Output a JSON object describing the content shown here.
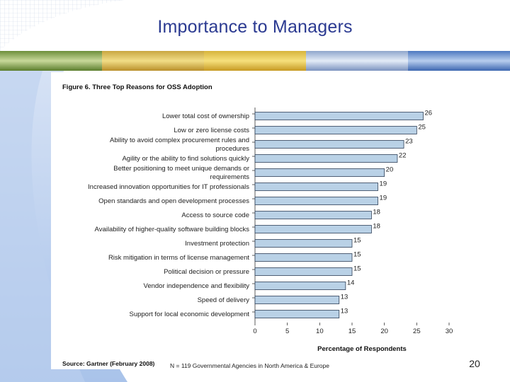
{
  "slide": {
    "title": "Importance to Managers",
    "page_number": "20",
    "accent_color": "#2b3a91"
  },
  "chart_data": {
    "type": "bar",
    "orientation": "horizontal",
    "title": "Figure 6. Three Top Reasons for OSS Adoption",
    "xlabel": "Percentage of Respondents",
    "ylabel": "",
    "xlim": [
      0,
      30
    ],
    "xticks": [
      0,
      5,
      10,
      15,
      20,
      25,
      30
    ],
    "bar_color": "#b9d1e6",
    "categories": [
      [
        "Lower total cost of ownership"
      ],
      [
        "Low or zero license costs"
      ],
      [
        "Ability to avoid complex procurement rules and",
        "procedures"
      ],
      [
        "Agility or the ability to find solutions quickly"
      ],
      [
        "Better positioning to meet unique demands or",
        "requirements"
      ],
      [
        "Increased innovation opportunities for IT professionals"
      ],
      [
        "Open standards and open development processes"
      ],
      [
        "Access to source code"
      ],
      [
        "Availability of higher-quality software building blocks"
      ],
      [
        "Investment protection"
      ],
      [
        "Risk mitigation in terms of license management"
      ],
      [
        "Political decision or pressure"
      ],
      [
        "Vendor independence and flexibility"
      ],
      [
        "Speed of delivery"
      ],
      [
        "Support for local economic development"
      ]
    ],
    "values": [
      26,
      25,
      23,
      22,
      20,
      19,
      19,
      18,
      18,
      15,
      15,
      15,
      14,
      13,
      13
    ],
    "source": "Source: Gartner (February 2008)",
    "note": "N = 119 Governmental Agencies in North America & Europe"
  }
}
